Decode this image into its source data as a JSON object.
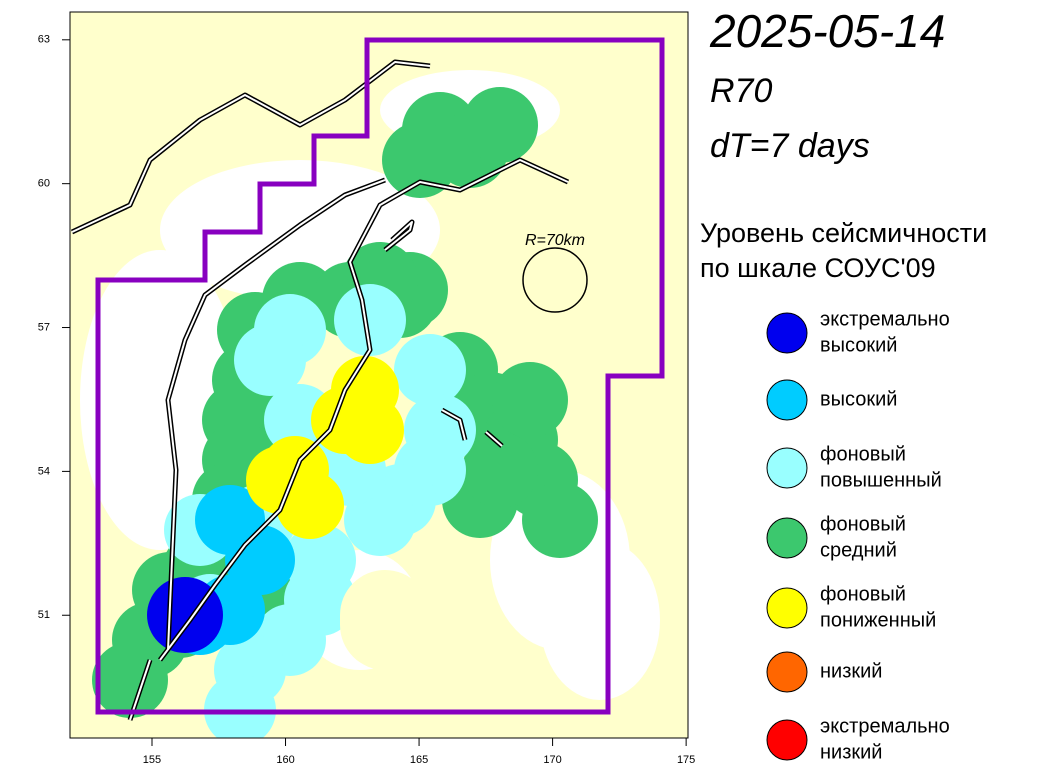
{
  "title": "2025-05-14",
  "subtitle": "R70",
  "interval": "dT=7 days",
  "radius_label": "R=70km",
  "legend": {
    "title": [
      "Уровень сейсмичности",
      "по шкале СОУС'09"
    ],
    "items": [
      {
        "lines": [
          "экстремально",
          "высокий"
        ],
        "color": "#0000ee"
      },
      {
        "lines": [
          "высокий"
        ],
        "color": "#00ccff"
      },
      {
        "lines": [
          "фоновый",
          "повышенный"
        ],
        "color": "#99ffff"
      },
      {
        "lines": [
          "фоновый",
          "средний"
        ],
        "color": "#3cc86e"
      },
      {
        "lines": [
          "фоновый",
          "пониженный"
        ],
        "color": "#ffff00"
      },
      {
        "lines": [
          "низкий"
        ],
        "color": "#ff6600"
      },
      {
        "lines": [
          "экстремально",
          "низкий"
        ],
        "color": "#ff0000"
      }
    ]
  },
  "axes": {
    "xlim": [
      151.93,
      175.07
    ],
    "ylim": [
      48.44,
      63.58
    ],
    "xticks": [
      155,
      160,
      165,
      170,
      175
    ],
    "yticks": [
      51,
      54,
      57,
      60,
      63
    ]
  }
}
